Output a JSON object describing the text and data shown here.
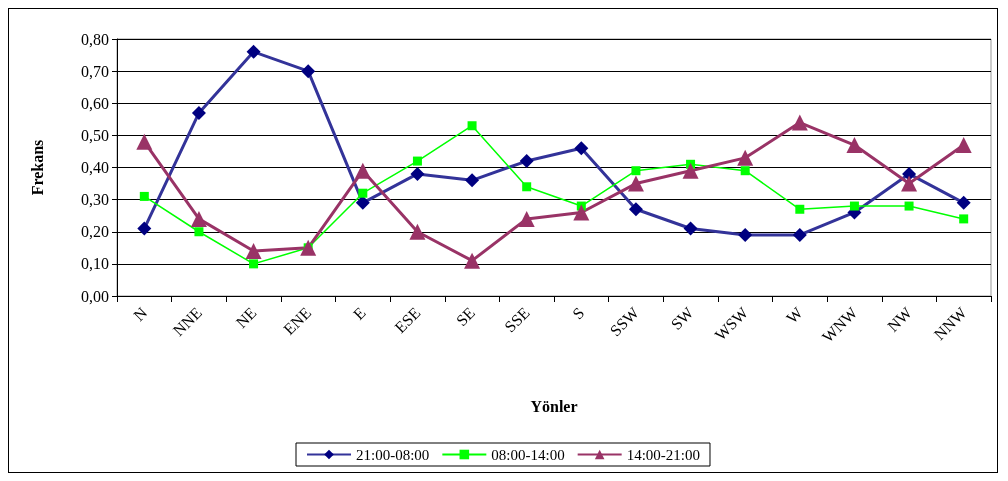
{
  "chart_data": {
    "type": "line",
    "xlabel": "Yönler",
    "ylabel": "Frekans",
    "categories": [
      "N",
      "NNE",
      "NE",
      "ENE",
      "E",
      "ESE",
      "SE",
      "SSE",
      "S",
      "SSW",
      "SW",
      "WSW",
      "W",
      "WNW",
      "NW",
      "NNW"
    ],
    "series": [
      {
        "name": "21:00-08:00",
        "color": "#333399",
        "marker": "diamond",
        "values": [
          0.21,
          0.57,
          0.76,
          0.7,
          0.29,
          0.38,
          0.36,
          0.42,
          0.46,
          0.27,
          0.21,
          0.19,
          0.19,
          0.26,
          0.38,
          0.29
        ]
      },
      {
        "name": "08:00-14:00",
        "color": "#00ff00",
        "marker": "square",
        "values": [
          0.31,
          0.2,
          0.1,
          0.15,
          0.32,
          0.42,
          0.53,
          0.34,
          0.28,
          0.39,
          0.41,
          0.39,
          0.27,
          0.28,
          0.28,
          0.24
        ]
      },
      {
        "name": "14:00-21:00",
        "color": "#993366",
        "marker": "triangle",
        "values": [
          0.48,
          0.24,
          0.14,
          0.15,
          0.39,
          0.2,
          0.11,
          0.24,
          0.26,
          0.35,
          0.39,
          0.43,
          0.54,
          0.47,
          0.35,
          0.47
        ]
      }
    ],
    "ylim": [
      0,
      0.8
    ],
    "yticks": [
      {
        "value": 0,
        "label": "0,00"
      },
      {
        "value": 0.1,
        "label": "0,10"
      },
      {
        "value": 0.2,
        "label": "0,20"
      },
      {
        "value": 0.3,
        "label": "0,30"
      },
      {
        "value": 0.4,
        "label": "0,40"
      },
      {
        "value": 0.5,
        "label": "0,50"
      },
      {
        "value": 0.6,
        "label": "0,60"
      },
      {
        "value": 0.7,
        "label": "0,70"
      },
      {
        "value": 0.8,
        "label": "0,80"
      }
    ],
    "grid": "y",
    "legend": "bottom"
  }
}
